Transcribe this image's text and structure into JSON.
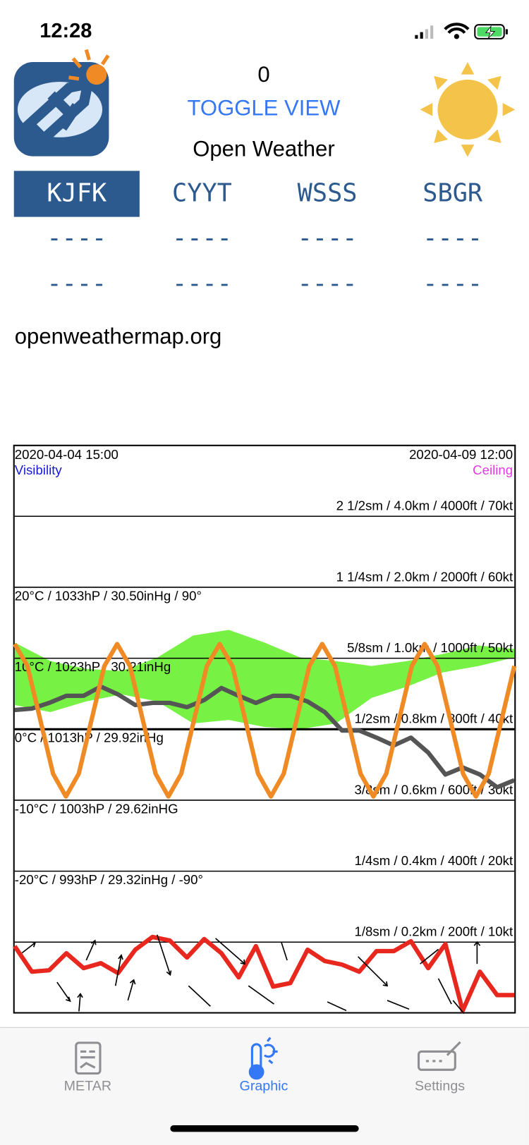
{
  "status_bar": {
    "time": "12:28"
  },
  "header": {
    "counter": "0",
    "toggle": "TOGGLE VIEW",
    "title": "Open Weather"
  },
  "stations": [
    {
      "code": "KJFK",
      "line1": "----",
      "line2": "----"
    },
    {
      "code": "CYYT",
      "line1": "----",
      "line2": "----"
    },
    {
      "code": "WSSS",
      "line1": "----",
      "line2": "----"
    },
    {
      "code": "SBGR",
      "line1": "----",
      "line2": "----"
    }
  ],
  "source": "openweathermap.org",
  "graph": {
    "start": "2020-04-04 15:00",
    "end": "2020-04-09 12:00",
    "left_legend": "Visibility",
    "right_legend": "Ceiling",
    "ylim": [
      -40,
      40
    ],
    "rows": [
      {
        "right": "2 1/2sm / 4.0km / 4000ft / 70kt"
      },
      {
        "right": "1 1/4sm / 2.0km / 2000ft / 60kt",
        "left": "20°C / 1033hP / 30.50inHg / 90°"
      },
      {
        "right": "5/8sm / 1.0km / 1000ft / 50kt",
        "left": "10°C / 1023hP / 30.21inHg"
      },
      {
        "right": "1/2sm / 0.8km / 800ft / 40kt",
        "left": "0°C / 1013hP / 29.92inHg"
      },
      {
        "right": "3/8sm / 0.6km / 600ft / 30kt",
        "left": "-10°C / 1003hP / 29.62inHG"
      },
      {
        "right": "1/4sm / 0.4km / 400ft / 20kt",
        "left": "-20°C / 993hP / 29.32inHg / -90°"
      },
      {
        "right": "1/8sm / 0.2km / 200ft / 10kt"
      }
    ],
    "band": {
      "color": "#77f244",
      "high": [
        12.2,
        9.6,
        8.5,
        8.2,
        10.1,
        13.2,
        14.0,
        12.2,
        10.1,
        9.6,
        8.9,
        9.6,
        10.6,
        11.8,
        11.3
      ],
      "low": [
        3.4,
        2.4,
        3.9,
        4.9,
        3.9,
        0.8,
        1.3,
        0.3,
        0,
        0.8,
        4.4,
        6.0,
        8.0,
        8.9,
        10.1
      ]
    },
    "series": [
      {
        "color": "#555555",
        "values": [
          2.7,
          2.9,
          3.7,
          4.7,
          4.7,
          6.0,
          4.9,
          3.4,
          3.7,
          3.7,
          3.1,
          4.1,
          5.8,
          4.7,
          3.7,
          4.7,
          4.7,
          3.9,
          2.4,
          -0.2,
          -0.2,
          -1.2,
          -2.3,
          -1.2,
          -3.3,
          -6.4,
          -5.4,
          -6.4,
          -8.2,
          -7.2
        ]
      },
      {
        "color": "#f08a24",
        "values": [
          12,
          8.9,
          1.3,
          -6.3,
          -9.5,
          -6.3,
          1.3,
          8.9,
          12,
          8.9,
          1.3,
          -6.3,
          -9.5,
          -6.3,
          1.3,
          8.9,
          12,
          8.9,
          1.3,
          -6.3,
          -9.5,
          -6.3,
          1.3,
          8.9,
          12,
          8.9,
          1.3,
          -6.3,
          -9.5,
          -6.3,
          1.3,
          8.9,
          12,
          8.9,
          1.3,
          -6.3,
          -9.5,
          -6.3,
          1.3,
          8.9
        ]
      },
      {
        "color": "#e8281e",
        "values": [
          -30.6,
          -34.2,
          -34.0,
          -31.6,
          -33.7,
          -33.0,
          -34.4,
          -31.1,
          -29.3,
          -29.8,
          -32.2,
          -29.6,
          -31.6,
          -35.0,
          -30.6,
          -36.3,
          -35.8,
          -31.1,
          -32.7,
          -33.2,
          -34.2,
          -31.3,
          -31.3,
          -29.9,
          -33.7,
          -30.3,
          -39.7,
          -34.2,
          -37.5,
          -37.5
        ]
      }
    ]
  },
  "tabs": [
    {
      "label": "METAR"
    },
    {
      "label": "Graphic"
    },
    {
      "label": "Settings"
    }
  ]
}
